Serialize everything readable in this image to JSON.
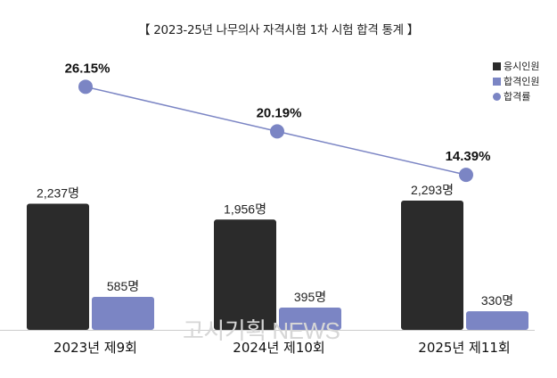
{
  "title": "【 2023-25년 나무의사 자격시험 1차 시험 합격 통계 】",
  "legend": [
    {
      "label": "응시인원",
      "color": "#2b2b2b",
      "shape": "square"
    },
    {
      "label": "합격인원",
      "color": "#7b85c4",
      "shape": "square"
    },
    {
      "label": "합격률",
      "color": "#7b85c4",
      "shape": "circle"
    }
  ],
  "watermark": "고시기획 NEWS",
  "chart_data": {
    "type": "bar",
    "categories": [
      "2023년 제9회",
      "2024년 제10회",
      "2025년 제11회"
    ],
    "series": [
      {
        "name": "응시인원",
        "type": "bar",
        "values": [
          2237,
          1956,
          2293
        ],
        "labels": [
          "2,237명",
          "1,956명",
          "2,293명"
        ],
        "color": "#2b2b2b"
      },
      {
        "name": "합격인원",
        "type": "bar",
        "values": [
          585,
          395,
          330
        ],
        "labels": [
          "585명",
          "395명",
          "330명"
        ],
        "color": "#7b85c4"
      },
      {
        "name": "합격률",
        "type": "line",
        "values": [
          26.15,
          20.19,
          14.39
        ],
        "labels": [
          "26.15%",
          "20.19%",
          "14.39%"
        ],
        "color": "#7b85c4"
      }
    ],
    "legend_position": "top-right",
    "grid": false
  }
}
